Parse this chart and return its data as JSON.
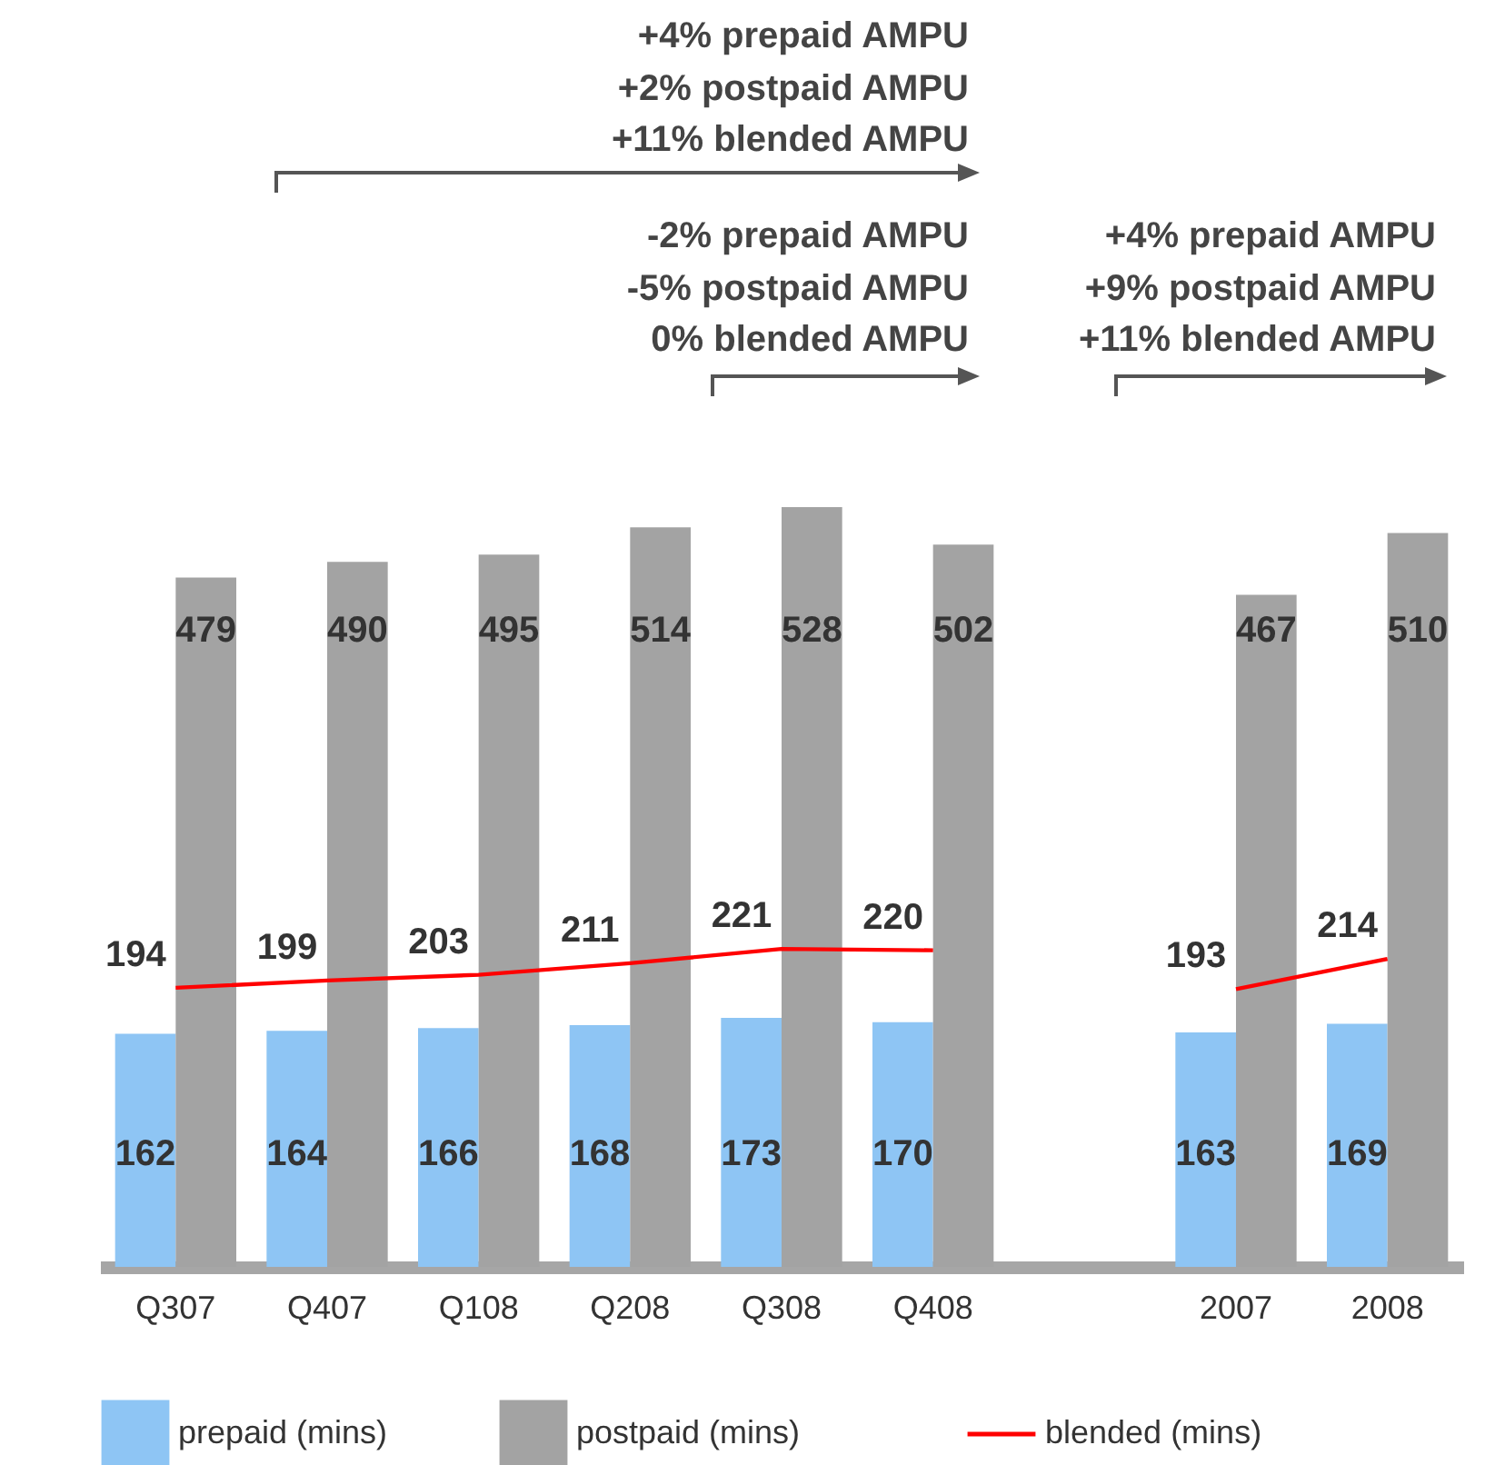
{
  "chart_data": {
    "type": "bar",
    "categories": [
      "Q307",
      "Q407",
      "Q108",
      "Q208",
      "Q308",
      "Q408",
      null,
      "2007",
      "2008"
    ],
    "series": [
      {
        "name": "prepaid (mins)",
        "color": "#8ec5f4",
        "values": [
          162,
          164,
          166,
          168,
          173,
          170,
          null,
          163,
          169
        ]
      },
      {
        "name": "postpaid (mins)",
        "color": "#a3a3a3",
        "values": [
          479,
          490,
          495,
          514,
          528,
          502,
          null,
          467,
          510
        ]
      },
      {
        "name": "blended (mins)",
        "type": "line",
        "color": "#ff0000",
        "values": [
          194,
          199,
          203,
          211,
          221,
          220,
          null,
          193,
          214
        ]
      }
    ],
    "annotations": [
      "+4% prepaid AMPU\n+2% postpaid AMPU\n+11% blended AMPU",
      "-2% prepaid AMPU\n-5% postpaid AMPU\n0% blended AMPU",
      "+4% prepaid AMPU\n+9% postpaid AMPU\n+11% blended AMPU"
    ],
    "data_labels": true,
    "legend": "bottom"
  }
}
